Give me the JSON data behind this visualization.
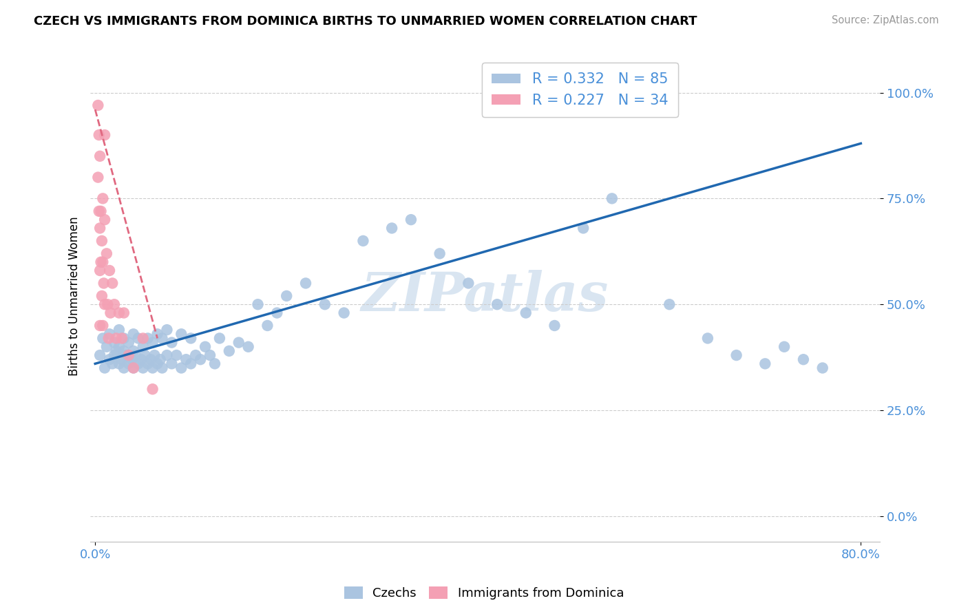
{
  "title": "CZECH VS IMMIGRANTS FROM DOMINICA BIRTHS TO UNMARRIED WOMEN CORRELATION CHART",
  "source": "Source: ZipAtlas.com",
  "ylabel": "Births to Unmarried Women",
  "ytick_labels": [
    "0.0%",
    "25.0%",
    "50.0%",
    "75.0%",
    "100.0%"
  ],
  "ytick_vals": [
    0.0,
    0.25,
    0.5,
    0.75,
    1.0
  ],
  "xtick_labels": [
    "0.0%",
    "80.0%"
  ],
  "xtick_vals": [
    0.0,
    0.8
  ],
  "xlim": [
    -0.005,
    0.82
  ],
  "ylim": [
    -0.06,
    1.1
  ],
  "blue_R": 0.332,
  "blue_N": 85,
  "pink_R": 0.227,
  "pink_N": 34,
  "blue_dot_color": "#aac4e0",
  "pink_dot_color": "#f4a0b4",
  "blue_line_color": "#2068b0",
  "pink_line_color": "#e06880",
  "watermark": "ZIPatlas",
  "watermark_color": "#c5d8ea",
  "legend_czechs": "Czechs",
  "legend_dominica": "Immigrants from Dominica",
  "blue_scatter_x": [
    0.005,
    0.008,
    0.01,
    0.012,
    0.015,
    0.015,
    0.018,
    0.02,
    0.02,
    0.022,
    0.025,
    0.025,
    0.025,
    0.028,
    0.03,
    0.03,
    0.03,
    0.032,
    0.035,
    0.035,
    0.038,
    0.04,
    0.04,
    0.04,
    0.042,
    0.045,
    0.045,
    0.048,
    0.05,
    0.05,
    0.052,
    0.055,
    0.055,
    0.058,
    0.06,
    0.06,
    0.062,
    0.065,
    0.065,
    0.068,
    0.07,
    0.07,
    0.075,
    0.075,
    0.08,
    0.08,
    0.085,
    0.09,
    0.09,
    0.095,
    0.1,
    0.1,
    0.105,
    0.11,
    0.115,
    0.12,
    0.125,
    0.13,
    0.14,
    0.15,
    0.16,
    0.17,
    0.18,
    0.19,
    0.2,
    0.22,
    0.24,
    0.26,
    0.28,
    0.31,
    0.33,
    0.36,
    0.39,
    0.42,
    0.45,
    0.48,
    0.51,
    0.54,
    0.6,
    0.64,
    0.67,
    0.7,
    0.72,
    0.74,
    0.76
  ],
  "blue_scatter_y": [
    0.38,
    0.42,
    0.35,
    0.4,
    0.37,
    0.43,
    0.36,
    0.38,
    0.41,
    0.39,
    0.36,
    0.4,
    0.44,
    0.37,
    0.35,
    0.39,
    0.42,
    0.38,
    0.36,
    0.41,
    0.37,
    0.35,
    0.39,
    0.43,
    0.38,
    0.36,
    0.42,
    0.37,
    0.35,
    0.4,
    0.38,
    0.36,
    0.42,
    0.37,
    0.35,
    0.41,
    0.38,
    0.36,
    0.43,
    0.37,
    0.35,
    0.42,
    0.38,
    0.44,
    0.36,
    0.41,
    0.38,
    0.35,
    0.43,
    0.37,
    0.36,
    0.42,
    0.38,
    0.37,
    0.4,
    0.38,
    0.36,
    0.42,
    0.39,
    0.41,
    0.4,
    0.5,
    0.45,
    0.48,
    0.52,
    0.55,
    0.5,
    0.48,
    0.65,
    0.68,
    0.7,
    0.62,
    0.55,
    0.5,
    0.48,
    0.45,
    0.68,
    0.75,
    0.5,
    0.42,
    0.38,
    0.36,
    0.4,
    0.37,
    0.35
  ],
  "pink_scatter_x": [
    0.003,
    0.003,
    0.004,
    0.004,
    0.005,
    0.005,
    0.005,
    0.005,
    0.006,
    0.006,
    0.007,
    0.007,
    0.008,
    0.008,
    0.008,
    0.009,
    0.01,
    0.01,
    0.01,
    0.012,
    0.013,
    0.014,
    0.015,
    0.016,
    0.018,
    0.02,
    0.022,
    0.025,
    0.028,
    0.03,
    0.035,
    0.04,
    0.05,
    0.06
  ],
  "pink_scatter_y": [
    0.97,
    0.8,
    0.9,
    0.72,
    0.85,
    0.68,
    0.58,
    0.45,
    0.72,
    0.6,
    0.65,
    0.52,
    0.75,
    0.6,
    0.45,
    0.55,
    0.9,
    0.7,
    0.5,
    0.62,
    0.5,
    0.42,
    0.58,
    0.48,
    0.55,
    0.5,
    0.42,
    0.48,
    0.42,
    0.48,
    0.38,
    0.35,
    0.42,
    0.3
  ],
  "blue_trend_x": [
    0.0,
    0.8
  ],
  "blue_trend_y": [
    0.36,
    0.88
  ],
  "pink_trend_x": [
    0.0,
    0.065
  ],
  "pink_trend_y": [
    0.96,
    0.42
  ]
}
